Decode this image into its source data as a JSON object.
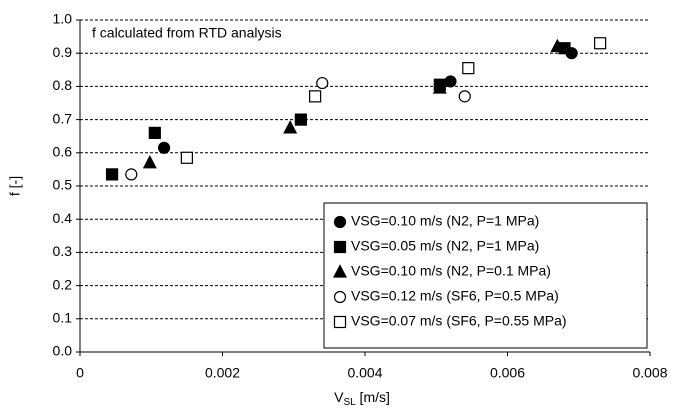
{
  "chart_data": {
    "type": "scatter",
    "annotation": "f calculated from RTD analysis",
    "xlabel": {
      "main": "V",
      "sub": "SL",
      "unit": " [m/s]"
    },
    "ylabel": "f [-]",
    "xlim": [
      0,
      0.008
    ],
    "xticks": [
      0,
      0.002,
      0.004,
      0.006,
      0.008
    ],
    "ylim": [
      0,
      1
    ],
    "yticks": [
      {
        "value": 0,
        "label": "0.0"
      },
      0.1,
      0.2,
      0.3,
      0.4,
      0.5,
      0.6,
      0.7,
      0.8,
      0.9,
      {
        "value": 1,
        "label": "1.0"
      }
    ],
    "grid": true,
    "legend": "lower right",
    "series": [
      {
        "name": "VSG=0.10 m/s (N2, P=1 MPa)",
        "color": "#000000",
        "marker": "circle",
        "filled": true,
        "x": [
          0.00118,
          0.0052,
          0.0069
        ],
        "values": [
          0.615,
          0.815,
          0.9
        ]
      },
      {
        "name": "VSG=0.05 m/s (N2, P=1 MPa)",
        "color": "#000000",
        "marker": "square",
        "filled": true,
        "x": [
          0.00045,
          0.00105,
          0.0031,
          0.00505,
          0.0068
        ],
        "values": [
          0.535,
          0.66,
          0.7,
          0.805,
          0.915
        ]
      },
      {
        "name": "VSG=0.10 m/s (N2, P=0.1 MPa)",
        "color": "#000000",
        "marker": "triangle",
        "filled": true,
        "x": [
          0.00098,
          0.00295,
          0.00505,
          0.0067
        ],
        "values": [
          0.57,
          0.675,
          0.795,
          0.92
        ]
      },
      {
        "name": "VSG=0.12 m/s (SF6, P=0.5 MPa)",
        "color": "#000000",
        "marker": "circle",
        "filled": false,
        "x": [
          0.00072,
          0.0034,
          0.0054
        ],
        "values": [
          0.535,
          0.81,
          0.77
        ]
      },
      {
        "name": "VSG=0.07 m/s (SF6, P=0.55 MPa)",
        "color": "#000000",
        "marker": "square",
        "filled": false,
        "x": [
          0.0015,
          0.0033,
          0.00545,
          0.0073
        ],
        "values": [
          0.585,
          0.77,
          0.855,
          0.93
        ]
      }
    ]
  }
}
